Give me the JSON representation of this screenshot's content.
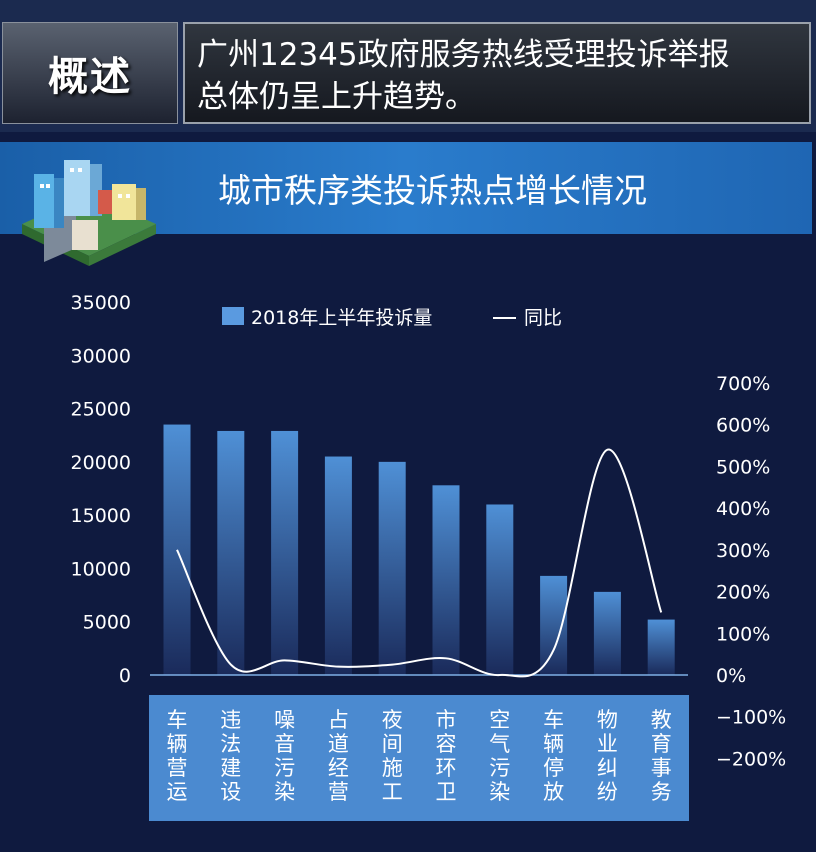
{
  "header": {
    "tag": "概述",
    "headline_line1": "广州12345政府服务热线受理投诉举报",
    "headline_line2": "总体仍呈上升趋势。"
  },
  "section": {
    "title": "城市秩序类投诉热点增长情况"
  },
  "chart_data": {
    "type": "bar",
    "title": "城市秩序类投诉热点增长情况",
    "categories": [
      "车辆营运",
      "违法建设",
      "噪音污染",
      "占道经营",
      "夜间施工",
      "市容环卫",
      "空气污染",
      "车辆停放",
      "物业纠纷",
      "教育事务"
    ],
    "series": [
      {
        "name": "2018年上半年投诉量",
        "type": "bar",
        "axis": "left",
        "values": [
          23500,
          22900,
          22900,
          20500,
          20000,
          17800,
          16000,
          9300,
          7800,
          5200
        ]
      },
      {
        "name": "同比",
        "type": "line",
        "axis": "right",
        "unit": "%",
        "values": [
          300,
          25,
          35,
          20,
          25,
          40,
          0,
          60,
          540,
          150
        ]
      }
    ],
    "y_left": {
      "min": 0,
      "max": 35000,
      "ticks": [
        "35000",
        "30000",
        "25000",
        "20000",
        "15000",
        "10000",
        "5000",
        "0"
      ]
    },
    "y_right": {
      "min": -200,
      "max": 700,
      "ticks": [
        "700%",
        "600%",
        "500%",
        "400%",
        "300%",
        "200%",
        "100%",
        "0%",
        "−100%",
        "−200%"
      ]
    },
    "legend": {
      "position": "top",
      "bar_label": "2018年上半年投诉量",
      "line_label": "同比"
    },
    "colors": {
      "bar": "#4f90d6",
      "line": "#ffffff",
      "category_band": "#4b8ad0"
    }
  }
}
